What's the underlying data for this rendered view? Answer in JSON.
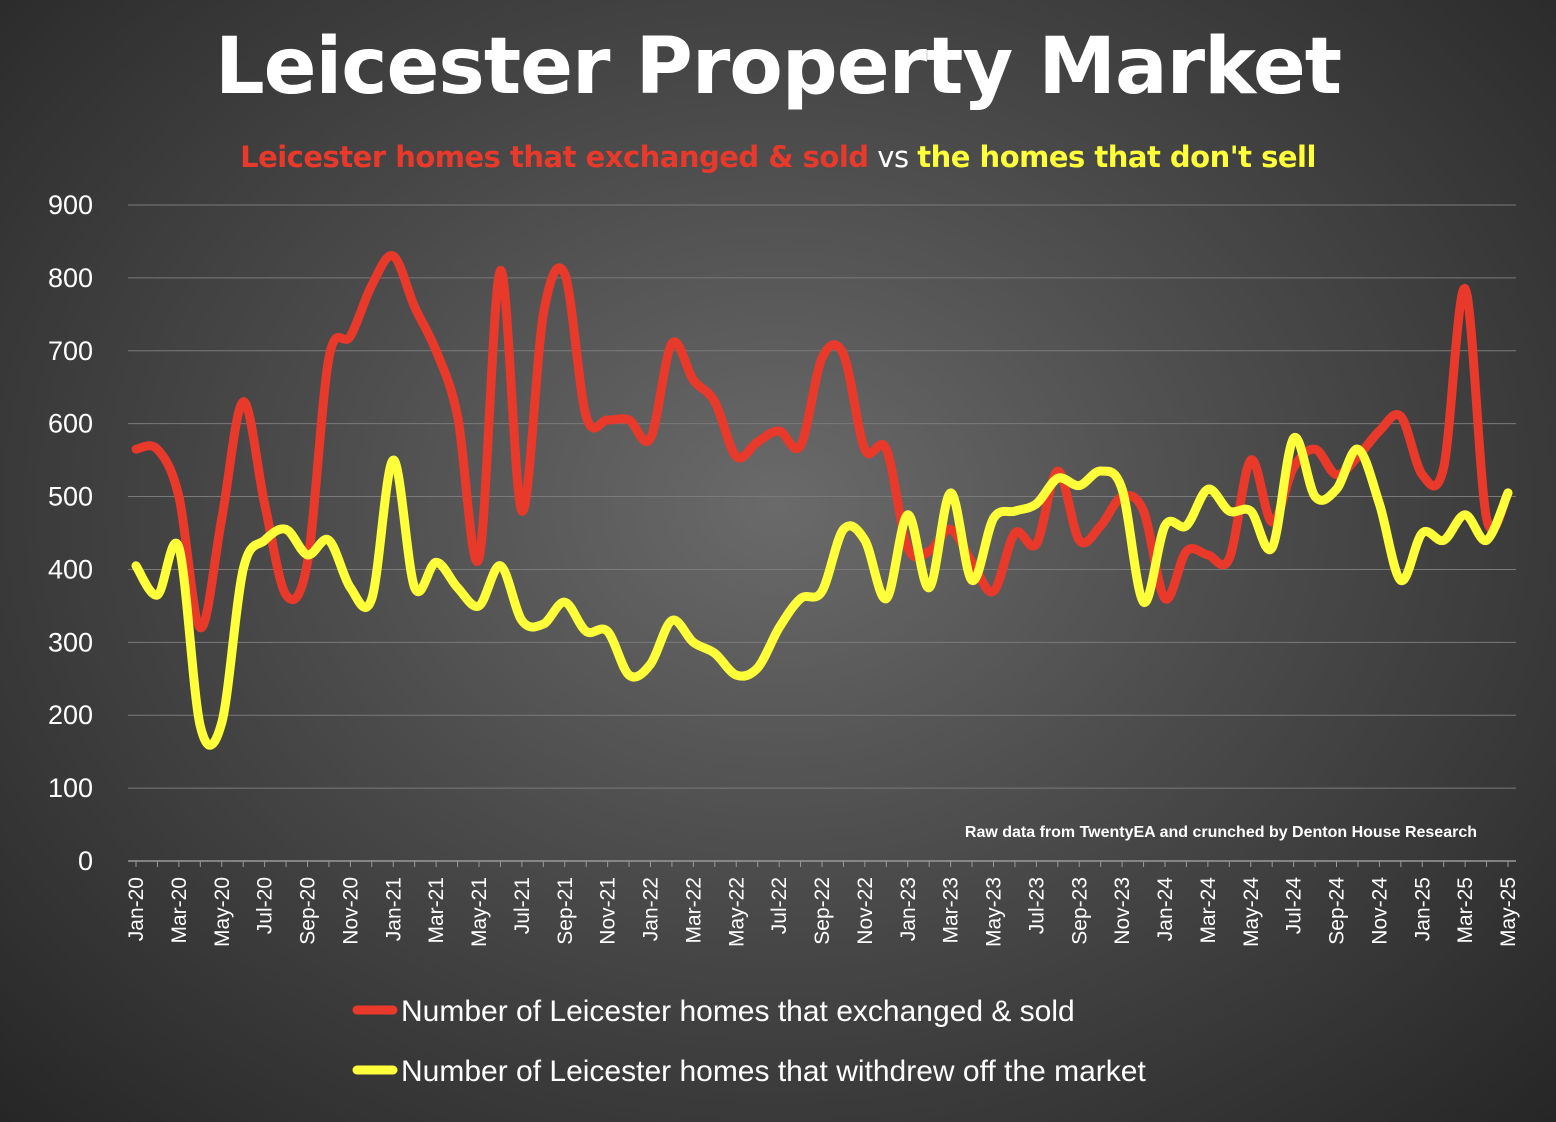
{
  "title": "Leicester Property Market",
  "subtitle": {
    "part1": "Leicester homes that exchanged & sold",
    "part2": " vs ",
    "part3": "the homes that don't sell"
  },
  "note": "Raw data from TwentyEA and crunched by Denton House Research",
  "colors": {
    "sold": "#e8392b",
    "withdrawn": "#ffff3a",
    "grid": "#7a7a7a"
  },
  "chart_data": {
    "type": "line",
    "ylim": [
      0,
      900
    ],
    "yticks": [
      0,
      100,
      200,
      300,
      400,
      500,
      600,
      700,
      800,
      900
    ],
    "grid": true,
    "legend": "bottom",
    "x": [
      "Jan-20",
      "Feb-20",
      "Mar-20",
      "Apr-20",
      "May-20",
      "Jun-20",
      "Jul-20",
      "Aug-20",
      "Sep-20",
      "Oct-20",
      "Nov-20",
      "Dec-20",
      "Jan-21",
      "Feb-21",
      "Mar-21",
      "Apr-21",
      "May-21",
      "Jun-21",
      "Jul-21",
      "Aug-21",
      "Sep-21",
      "Oct-21",
      "Nov-21",
      "Dec-21",
      "Jan-22",
      "Feb-22",
      "Mar-22",
      "Apr-22",
      "May-22",
      "Jun-22",
      "Jul-22",
      "Aug-22",
      "Sep-22",
      "Oct-22",
      "Nov-22",
      "Dec-22",
      "Jan-23",
      "Feb-23",
      "Mar-23",
      "Apr-23",
      "May-23",
      "Jun-23",
      "Jul-23",
      "Aug-23",
      "Sep-23",
      "Oct-23",
      "Nov-23",
      "Dec-23",
      "Jan-24",
      "Feb-24",
      "Mar-24",
      "Apr-24",
      "May-24",
      "Jun-24",
      "Jul-24",
      "Aug-24",
      "Sep-24",
      "Oct-24",
      "Nov-24",
      "Dec-24",
      "Jan-25",
      "Feb-25",
      "Mar-25",
      "Apr-25",
      "May-25"
    ],
    "xtick_labels": [
      "Jan-20",
      "Mar-20",
      "May-20",
      "Jul-20",
      "Sep-20",
      "Nov-20",
      "Jan-21",
      "Mar-21",
      "May-21",
      "Jul-21",
      "Sep-21",
      "Nov-21",
      "Jan-22",
      "Mar-22",
      "May-22",
      "Jul-22",
      "Sep-22",
      "Nov-22",
      "Jan-23",
      "Mar-23",
      "May-23",
      "Jul-23",
      "Sep-23",
      "Nov-23",
      "Jan-24",
      "Mar-24",
      "May-24",
      "Jul-24",
      "Sep-24",
      "Nov-24",
      "Jan-25",
      "Mar-25",
      "May-25"
    ],
    "series": [
      {
        "name": "Number of Leicester homes that exchanged & sold",
        "color": "#e8392b",
        "values": [
          565,
          565,
          500,
          320,
          470,
          630,
          490,
          365,
          410,
          690,
          720,
          790,
          830,
          760,
          700,
          610,
          415,
          810,
          480,
          750,
          805,
          610,
          605,
          605,
          580,
          710,
          660,
          630,
          555,
          575,
          590,
          570,
          690,
          695,
          565,
          565,
          430,
          425,
          455,
          410,
          370,
          450,
          435,
          535,
          440,
          460,
          500,
          480,
          360,
          425,
          420,
          415,
          550,
          465,
          540,
          565,
          530,
          555,
          590,
          610,
          530,
          540,
          785,
          470,
          505
        ]
      },
      {
        "name": "Number of Leicester homes that withdrew off the market",
        "color": "#ffff3a",
        "values": [
          405,
          365,
          430,
          185,
          190,
          400,
          440,
          455,
          420,
          440,
          375,
          360,
          550,
          375,
          410,
          375,
          350,
          405,
          330,
          325,
          355,
          315,
          315,
          255,
          270,
          330,
          300,
          285,
          255,
          265,
          320,
          360,
          370,
          455,
          440,
          360,
          475,
          375,
          505,
          385,
          470,
          480,
          490,
          525,
          515,
          535,
          510,
          355,
          460,
          460,
          510,
          480,
          480,
          430,
          580,
          500,
          510,
          565,
          490,
          385,
          450,
          440,
          475,
          440,
          505
        ]
      }
    ]
  }
}
